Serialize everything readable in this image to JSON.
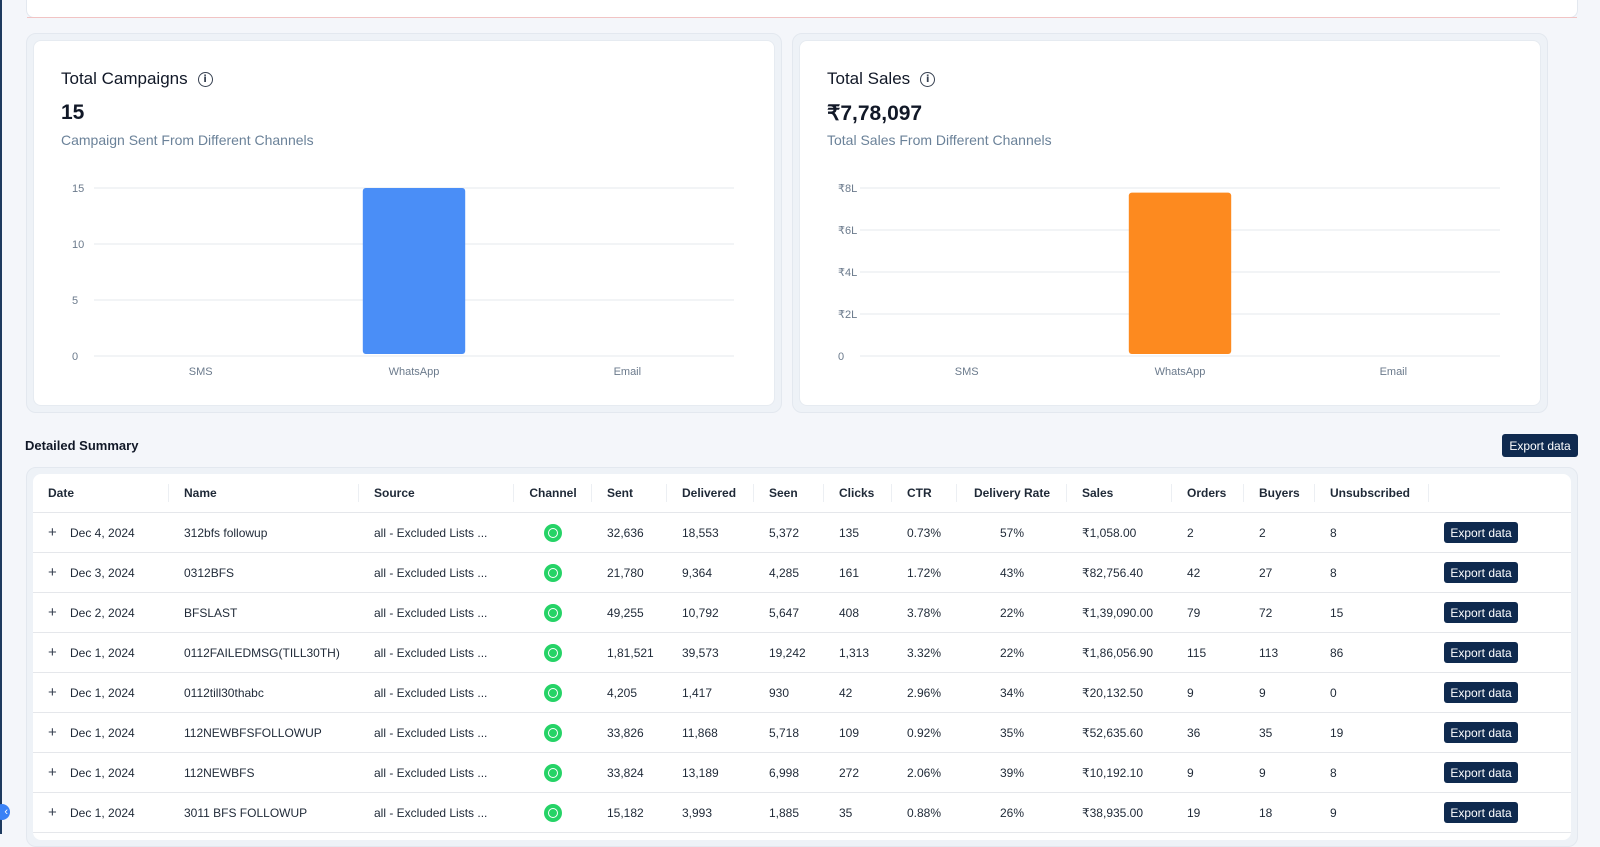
{
  "summary": {
    "title": "Detailed Summary",
    "export_label": "Export data"
  },
  "cards": [
    {
      "title": "Total Campaigns",
      "value": "15",
      "subtitle": "Campaign Sent From Different Channels"
    },
    {
      "title": "Total Sales",
      "value": "₹7,78,097",
      "subtitle": "Total Sales From Different Channels"
    }
  ],
  "chart_data": [
    {
      "type": "bar",
      "title": "Total Campaigns",
      "categories": [
        "SMS",
        "WhatsApp",
        "Email"
      ],
      "values": [
        0,
        15,
        0
      ],
      "ylim": [
        0,
        15
      ],
      "yticks": [
        0,
        5,
        10,
        15
      ],
      "ytick_labels": [
        "0",
        "5",
        "10",
        "15"
      ],
      "color": "#4a8ef7",
      "grid": true
    },
    {
      "type": "bar",
      "title": "Total Sales",
      "categories": [
        "SMS",
        "WhatsApp",
        "Email"
      ],
      "values": [
        0,
        778097,
        0
      ],
      "ylim": [
        0,
        800000
      ],
      "yticks": [
        0,
        200000,
        400000,
        600000,
        800000
      ],
      "ytick_labels": [
        "0",
        "₹2L",
        "₹4L",
        "₹6L",
        "₹8L"
      ],
      "color": "#fd8a1f",
      "grid": true
    }
  ],
  "table": {
    "columns": [
      "Date",
      "Name",
      "Source",
      "Channel",
      "Sent",
      "Delivered",
      "Seen",
      "Clicks",
      "CTR",
      "Delivery Rate",
      "Sales",
      "Orders",
      "Buyers",
      "Unsubscribed",
      ""
    ],
    "rows": [
      [
        "Dec 4, 2024",
        "312bfs followup",
        "all - Excluded Lists ...",
        "whatsapp",
        "32,636",
        "18,553",
        "5,372",
        "135",
        "0.73%",
        "57%",
        "₹1,058.00",
        "2",
        "2",
        "8"
      ],
      [
        "Dec 3, 2024",
        "0312BFS",
        "all - Excluded Lists ...",
        "whatsapp",
        "21,780",
        "9,364",
        "4,285",
        "161",
        "1.72%",
        "43%",
        "₹82,756.40",
        "42",
        "27",
        "8"
      ],
      [
        "Dec 2, 2024",
        "BFSLAST",
        "all - Excluded Lists ...",
        "whatsapp",
        "49,255",
        "10,792",
        "5,647",
        "408",
        "3.78%",
        "22%",
        "₹1,39,090.00",
        "79",
        "72",
        "15"
      ],
      [
        "Dec 1, 2024",
        "0112FAILEDMSG(TILL30TH)",
        "all - Excluded Lists ...",
        "whatsapp",
        "1,81,521",
        "39,573",
        "19,242",
        "1,313",
        "3.32%",
        "22%",
        "₹1,86,056.90",
        "115",
        "113",
        "86"
      ],
      [
        "Dec 1, 2024",
        "0112till30thabc",
        "all - Excluded Lists ...",
        "whatsapp",
        "4,205",
        "1,417",
        "930",
        "42",
        "2.96%",
        "34%",
        "₹20,132.50",
        "9",
        "9",
        "0"
      ],
      [
        "Dec 1, 2024",
        "112NEWBFSFOLLOWUP",
        "all - Excluded Lists ...",
        "whatsapp",
        "33,826",
        "11,868",
        "5,718",
        "109",
        "0.92%",
        "35%",
        "₹52,635.60",
        "36",
        "35",
        "19"
      ],
      [
        "Dec 1, 2024",
        "112NEWBFS",
        "all - Excluded Lists ...",
        "whatsapp",
        "33,824",
        "13,189",
        "6,998",
        "272",
        "2.06%",
        "39%",
        "₹10,192.10",
        "9",
        "9",
        "8"
      ],
      [
        "Dec 1, 2024",
        "3011 BFS FOLLOWUP",
        "all - Excluded Lists ...",
        "whatsapp",
        "15,182",
        "3,993",
        "1,885",
        "35",
        "0.88%",
        "26%",
        "₹38,935.00",
        "19",
        "18",
        "9"
      ]
    ]
  }
}
